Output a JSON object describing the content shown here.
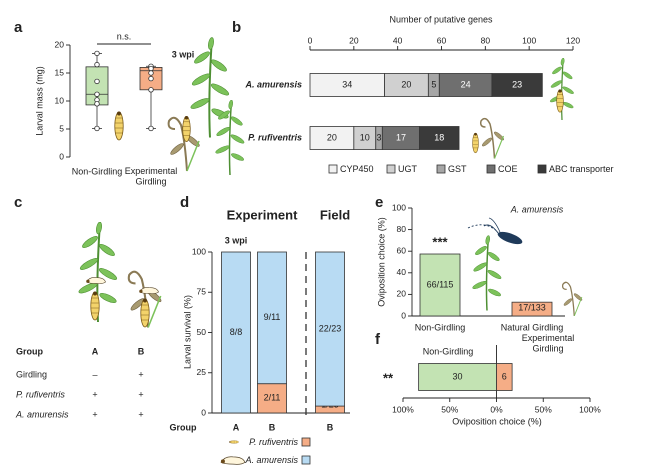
{
  "chart_data": [
    {
      "panel": "a",
      "type": "box",
      "ylabel": "Larval mass (mg)",
      "annotations": [
        "n.s.",
        "3 wpi"
      ],
      "categories": [
        "Non-Girdling",
        "Experimental\nGirdling"
      ],
      "colors": [
        "#c3e3b3",
        "#f5ad86"
      ],
      "boxes": [
        {
          "min": 5.1,
          "q1": 9.3,
          "median": 11.2,
          "q3": 16.1,
          "max": 18.5,
          "points": [
            18.5,
            16.5,
            13.5,
            11.2,
            10.2,
            9.5,
            5.1
          ]
        },
        {
          "min": 5.1,
          "q1": 12.0,
          "median": 15.4,
          "q3": 16.0,
          "max": 16.2,
          "points": [
            16.2,
            15.8,
            15.0,
            14.0,
            12.0,
            5.1
          ]
        }
      ],
      "ylim": [
        0,
        20
      ],
      "yticks": [
        0,
        5,
        10,
        15,
        20
      ]
    },
    {
      "panel": "b",
      "type": "bar",
      "orientation": "horizontal",
      "xlabel": "Number of putative genes",
      "categories": [
        "A. amurensis",
        "P. rufiventris"
      ],
      "series": [
        {
          "name": "CYP450",
          "color": "#f2f2f2",
          "label_color": "#222",
          "values": [
            34,
            20
          ]
        },
        {
          "name": "UGT",
          "color": "#d0d0d0",
          "label_color": "#222",
          "values": [
            20,
            10
          ]
        },
        {
          "name": "GST",
          "color": "#a6a6a6",
          "label_color": "#222",
          "values": [
            5,
            3
          ]
        },
        {
          "name": "COE",
          "color": "#6f6f6f",
          "label_color": "#fff",
          "values": [
            24,
            17
          ]
        },
        {
          "name": "ABC transporter",
          "color": "#3a3a3a",
          "label_color": "#fff",
          "values": [
            23,
            18
          ]
        }
      ],
      "xlim": [
        0,
        120
      ],
      "xticks": [
        0,
        20,
        40,
        60,
        80,
        100,
        120
      ]
    },
    {
      "panel": "d",
      "type": "bar",
      "orientation": "vertical",
      "ylabel": "Larval survival (%)",
      "xlabel": "Group",
      "annotations": [
        "Experiment",
        "Field",
        "3 wpi"
      ],
      "categories": [
        "A",
        "B",
        "B"
      ],
      "series": [
        {
          "name": "P. rufiventris",
          "color": "#f5ad86",
          "values": [
            0,
            18.2,
            4.3
          ],
          "count_labels": [
            "0/8",
            "2/11",
            "1/23"
          ]
        },
        {
          "name": "A. amurensis",
          "color": "#b8dbf3",
          "values": [
            100,
            81.8,
            95.7
          ],
          "count_labels": [
            "8/8",
            "9/11",
            "22/23"
          ]
        }
      ],
      "ylim": [
        0,
        100
      ],
      "yticks": [
        0,
        25,
        50,
        75,
        100
      ]
    },
    {
      "panel": "e",
      "type": "bar",
      "orientation": "vertical",
      "ylabel": "Oviposition choice (%)",
      "annotations": [
        "***",
        "A. amurensis"
      ],
      "categories": [
        "Non-Girdling",
        "Natural Girdling"
      ],
      "values": [
        57.4,
        12.8
      ],
      "count_labels": [
        "66/115",
        "17/133"
      ],
      "colors": [
        "#c3e3b3",
        "#f5ad86"
      ],
      "ylim": [
        0,
        100
      ],
      "yticks": [
        0,
        20,
        40,
        60,
        80,
        100
      ]
    },
    {
      "panel": "f",
      "type": "bar",
      "orientation": "horizontal",
      "xlabel": "Oviposition choice (%)",
      "annotations": [
        "**"
      ],
      "categories": [
        null
      ],
      "series": [
        {
          "name": "Non-Girdling",
          "color": "#c3e3b3",
          "values": [
            -83.3
          ],
          "counts": [
            30
          ]
        },
        {
          "name": "Experimental\nGirdling",
          "color": "#f5ad86",
          "values": [
            16.7
          ],
          "counts": [
            6
          ]
        }
      ],
      "xlim": [
        -100,
        100
      ],
      "xticks": [
        {
          "value": -100,
          "label": "100%"
        },
        {
          "value": -50,
          "label": "50%"
        },
        {
          "value": 0,
          "label": "0%"
        },
        {
          "value": 50,
          "label": "50%"
        },
        {
          "value": 100,
          "label": "100%"
        }
      ]
    }
  ],
  "table_c": {
    "panel": "c",
    "header": [
      "Group",
      "A",
      "B"
    ],
    "rows": [
      [
        "Girdling",
        "–",
        "+"
      ],
      [
        "P. rufiventris",
        "+",
        "+"
      ],
      [
        "A. amurensis",
        "+",
        "+"
      ]
    ]
  }
}
